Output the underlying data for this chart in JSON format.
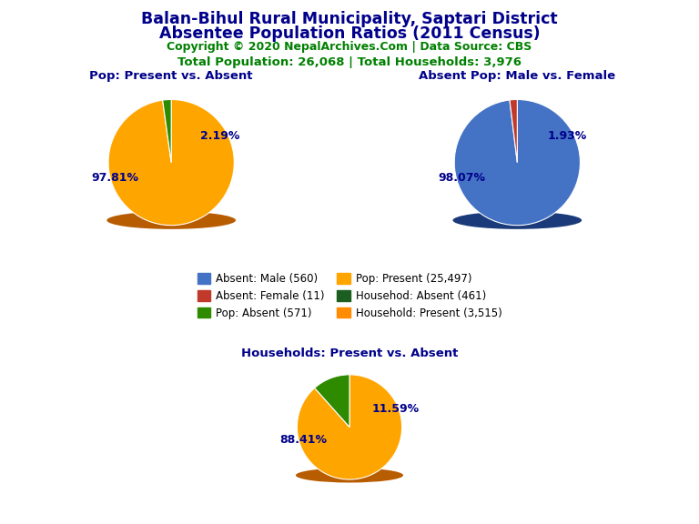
{
  "title_line1": "Balan-Bihul Rural Municipality, Saptari District",
  "title_line2": "Absentee Population Ratios (2011 Census)",
  "copyright": "Copyright © 2020 NepalArchives.Com | Data Source: CBS",
  "stats": "Total Population: 26,068 | Total Households: 3,976",
  "title_color": "#00008B",
  "copyright_color": "#008000",
  "stats_color": "#008000",
  "pie1_title": "Pop: Present vs. Absent",
  "pie1_values": [
    97.81,
    2.19
  ],
  "pie1_colors": [
    "#FFA500",
    "#2E8B00"
  ],
  "pie1_shadow_color": "#B85C00",
  "pie2_title": "Absent Pop: Male vs. Female",
  "pie2_values": [
    98.07,
    1.93
  ],
  "pie2_colors": [
    "#4472C4",
    "#C0392B"
  ],
  "pie2_shadow_color": "#1A3A7A",
  "pie3_title": "Households: Present vs. Absent",
  "pie3_values": [
    88.41,
    11.59
  ],
  "pie3_colors": [
    "#FFA500",
    "#2E8B00"
  ],
  "pie3_shadow_color": "#B85C00",
  "legend_entries_col1": [
    {
      "label": "Absent: Male (560)",
      "color": "#4472C4"
    },
    {
      "label": "Pop: Absent (571)",
      "color": "#2E8B00"
    },
    {
      "label": "Househod: Absent (461)",
      "color": "#1B5E20"
    }
  ],
  "legend_entries_col2": [
    {
      "label": "Absent: Female (11)",
      "color": "#C0392B"
    },
    {
      "label": "Pop: Present (25,497)",
      "color": "#FFA500"
    },
    {
      "label": "Household: Present (3,515)",
      "color": "#FF8C00"
    }
  ],
  "pie_title_color": "#00008B",
  "pct_color": "#00008B",
  "background_color": "#FFFFFF",
  "pie1_pct_present": "97.81%",
  "pie1_pct_absent": "2.19%",
  "pie2_pct_male": "98.07%",
  "pie2_pct_female": "1.93%",
  "pie3_pct_present": "88.41%",
  "pie3_pct_absent": "11.59%"
}
